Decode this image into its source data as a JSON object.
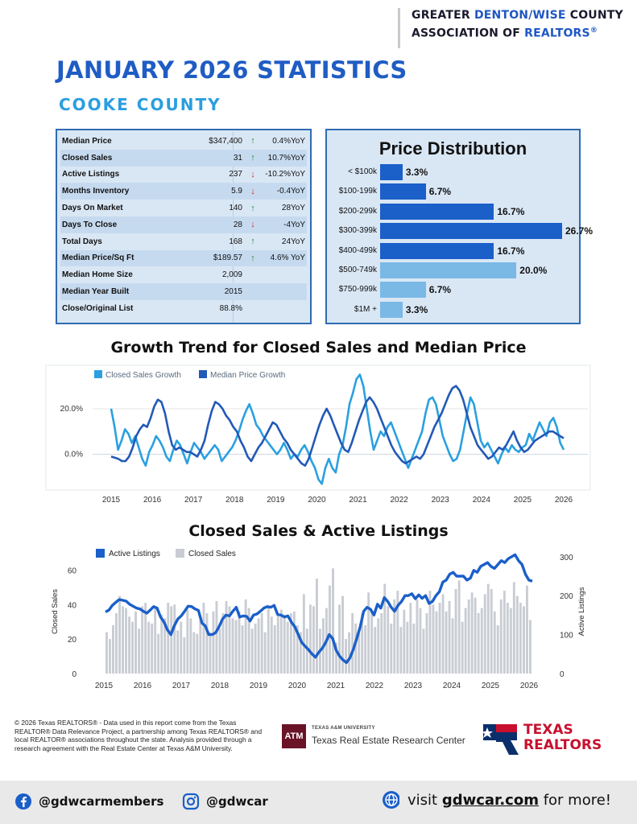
{
  "header": {
    "org_line1_a": "GREATER ",
    "org_line1_b": "DENTON/WISE",
    "org_line1_c": " COUNTY",
    "org_line2_a": "ASSOCIATION OF ",
    "org_line2_b": "REALTORS",
    "org_line2_reg": "®",
    "title": "JANUARY 2026 STATISTICS",
    "county": "COOKE COUNTY"
  },
  "stats": [
    {
      "label": "Median Price",
      "value": "$347,400",
      "arrow": "up",
      "yoy": "0.4%YoY"
    },
    {
      "label": "Closed Sales",
      "value": "31",
      "arrow": "up",
      "yoy": "10.7%YoY"
    },
    {
      "label": "Active Listings",
      "value": "237",
      "arrow": "down",
      "yoy": "-10.2%YoY"
    },
    {
      "label": "Months Inventory",
      "value": "5.9",
      "arrow": "down",
      "yoy": "-0.4YoY"
    },
    {
      "label": "Days On Market",
      "value": "140",
      "arrow": "up",
      "yoy": "28YoY"
    },
    {
      "label": "Days To Close",
      "value": "28",
      "arrow": "down",
      "yoy": "-4YoY"
    },
    {
      "label": "Total Days",
      "value": "168",
      "arrow": "up",
      "yoy": "24YoY"
    },
    {
      "label": "Median Price/Sq Ft",
      "value": "$189.57",
      "arrow": "up",
      "yoy": "4.6% YoY"
    },
    {
      "label": "Median Home Size",
      "value": "2,009",
      "arrow": "",
      "yoy": ""
    },
    {
      "label": "Median Year Built",
      "value": "2015",
      "arrow": "",
      "yoy": ""
    },
    {
      "label": "Close/Original List",
      "value": "88.8%",
      "arrow": "",
      "yoy": ""
    }
  ],
  "chart_data": [
    {
      "type": "bar",
      "title": "Price Distribution",
      "categories": [
        "< $100k",
        "$100-199k",
        "$200-299k",
        "$300-399k",
        "$400-499k",
        "$500-749k",
        "$750-999k",
        "$1M +"
      ],
      "values": [
        3.3,
        6.7,
        16.7,
        26.7,
        16.7,
        20.0,
        6.7,
        3.3
      ],
      "value_labels": [
        "3.3%",
        "6.7%",
        "16.7%",
        "26.7%",
        "16.7%",
        "20.0%",
        "6.7%",
        "3.3%"
      ],
      "colors": [
        "#1b5fc9",
        "#1b5fc9",
        "#1b5fc9",
        "#1b5fc9",
        "#1b5fc9",
        "#7ab8e6",
        "#7ab8e6",
        "#7ab8e6"
      ],
      "orientation": "horizontal"
    },
    {
      "type": "line",
      "title": "Growth Trend for Closed Sales and Median Price",
      "x_ticks": [
        "2015",
        "2016",
        "2017",
        "2018",
        "2019",
        "2020",
        "2021",
        "2022",
        "2023",
        "2024",
        "2025",
        "2026"
      ],
      "y_ticks": [
        "20.0%",
        "0.0%"
      ],
      "y_tick_values": [
        20,
        0
      ],
      "ylim": [
        -15,
        38
      ],
      "legend": "top-left",
      "series": [
        {
          "name": "Closed Sales Growth",
          "color": "#2aa0e0",
          "values": [
            20,
            12,
            2,
            6,
            11,
            9,
            5,
            8,
            3,
            -2,
            -5,
            1,
            4,
            8,
            6,
            3,
            -1,
            -3,
            2,
            6,
            4,
            0,
            -4,
            1,
            5,
            3,
            1,
            -2,
            0,
            2,
            4,
            2,
            -3,
            -1,
            1,
            3,
            6,
            10,
            15,
            19,
            22,
            18,
            13,
            11,
            8,
            6,
            4,
            2,
            0,
            2,
            5,
            2,
            -2,
            0,
            -1,
            2,
            4,
            1,
            -3,
            -6,
            -11,
            -13,
            -6,
            -2,
            -6,
            -8,
            0,
            4,
            12,
            22,
            27,
            33,
            35,
            30,
            20,
            10,
            2,
            6,
            10,
            8,
            12,
            14,
            10,
            6,
            2,
            -2,
            -6,
            -2,
            2,
            6,
            10,
            18,
            24,
            25,
            22,
            15,
            8,
            4,
            0,
            -3,
            -2,
            2,
            10,
            18,
            25,
            22,
            14,
            6,
            3,
            5,
            2,
            -1,
            -4,
            0,
            3,
            1,
            4,
            2,
            1,
            3,
            4,
            9,
            6,
            10,
            14,
            11,
            8,
            14,
            16,
            12,
            5,
            2
          ],
          "sample": "monthly from Jan 2015"
        },
        {
          "name": "Median Price Growth",
          "color": "#2359b7",
          "values": [
            -1,
            -1.5,
            -2,
            -3,
            -3,
            -1,
            3,
            8,
            11,
            13,
            12,
            16,
            21,
            24,
            23,
            18,
            10,
            4,
            2,
            3,
            2,
            1,
            1,
            0,
            -1,
            2,
            6,
            13,
            19,
            23,
            22,
            20,
            17,
            15,
            12,
            10,
            6,
            3,
            -1,
            -3,
            0,
            3,
            5,
            8,
            11,
            14,
            13,
            10,
            7,
            5,
            2,
            0,
            -2,
            -4,
            -5,
            -2,
            3,
            8,
            13,
            17,
            20,
            17,
            13,
            9,
            5,
            2,
            1,
            5,
            10,
            15,
            19,
            23,
            25,
            23,
            20,
            16,
            12,
            8,
            4,
            1,
            -1,
            -3,
            -4,
            -3,
            -2,
            -1,
            -2,
            0,
            4,
            8,
            12,
            15,
            18,
            22,
            26,
            29,
            30,
            28,
            24,
            18,
            12,
            8,
            4,
            2,
            0,
            -2,
            -1,
            1,
            3,
            2,
            4,
            7,
            10,
            6,
            3,
            1,
            2,
            4,
            6,
            7,
            8,
            9,
            10,
            10,
            9,
            8,
            7
          ]
        }
      ]
    },
    {
      "type": "bar",
      "title": "Closed Sales & Active Listings",
      "x_ticks": [
        "2015",
        "2016",
        "2017",
        "2018",
        "2019",
        "2020",
        "2021",
        "2022",
        "2023",
        "2024",
        "2025",
        "2026"
      ],
      "ylabel": "Closed Sales",
      "y2label": "Active Listings",
      "y_ticks": [
        "60",
        "40",
        "20",
        "0"
      ],
      "y_tick_values": [
        60,
        40,
        20,
        0
      ],
      "y2_ticks": [
        "300",
        "200",
        "100",
        "0"
      ],
      "y2_tick_values": [
        300,
        200,
        100,
        0
      ],
      "ylim": [
        0,
        70
      ],
      "y2lim": [
        0,
        310
      ],
      "legend": "top-left",
      "series": [
        {
          "name": "Closed Sales",
          "type": "bar",
          "color": "#c9cdd3",
          "axis": "left",
          "values": [
            24,
            20,
            28,
            35,
            45,
            39,
            38,
            33,
            30,
            36,
            26,
            39,
            41,
            30,
            29,
            38,
            23,
            34,
            32,
            41,
            39,
            40,
            25,
            30,
            21,
            37,
            32,
            24,
            23,
            31,
            41,
            35,
            24,
            36,
            42,
            26,
            35,
            42,
            39,
            32,
            31,
            36,
            28,
            43,
            38,
            26,
            29,
            32,
            35,
            24,
            38,
            33,
            28,
            35,
            37,
            34,
            30,
            35,
            36,
            28,
            24,
            46,
            26,
            40,
            39,
            55,
            26,
            32,
            38,
            51,
            61,
            18,
            40,
            45,
            20,
            24,
            35,
            29,
            24,
            35,
            28,
            47,
            36,
            27,
            32,
            35,
            52,
            39,
            29,
            43,
            48,
            27,
            37,
            30,
            41,
            29,
            43,
            38,
            26,
            35,
            48,
            40,
            36,
            41,
            46,
            36,
            42,
            32,
            49,
            54,
            30,
            38,
            43,
            47,
            44,
            35,
            38,
            46,
            52,
            49,
            36,
            28,
            43,
            48,
            41,
            38,
            53,
            45,
            41,
            39,
            51,
            31
          ],
          "sample": "monthly from Jan 2015"
        },
        {
          "name": "Active Listings",
          "type": "line",
          "color": "#1b5fc9",
          "axis": "right",
          "values": [
            158,
            163,
            175,
            183,
            190,
            188,
            186,
            178,
            173,
            168,
            166,
            160,
            155,
            163,
            172,
            168,
            145,
            132,
            112,
            100,
            123,
            140,
            148,
            160,
            173,
            172,
            166,
            162,
            130,
            122,
            100,
            100,
            105,
            120,
            140,
            150,
            148,
            160,
            170,
            145,
            148,
            147,
            135,
            150,
            153,
            160,
            168,
            172,
            170,
            175,
            152,
            150,
            145,
            148,
            132,
            120,
            100,
            80,
            70,
            61,
            50,
            42,
            55,
            65,
            80,
            100,
            90,
            60,
            45,
            35,
            28,
            40,
            62,
            90,
            120,
            160,
            170,
            165,
            150,
            178,
            168,
            195,
            185,
            170,
            160,
            175,
            185,
            200,
            200,
            205,
            192,
            202,
            193,
            200,
            180,
            185,
            200,
            210,
            235,
            240,
            255,
            260,
            250,
            250,
            250,
            240,
            245,
            265,
            260,
            275,
            280,
            285,
            275,
            270,
            280,
            290,
            285,
            295,
            300,
            305,
            290,
            280,
            255,
            240,
            237
          ]
        }
      ]
    }
  ],
  "footer": {
    "disclaimer": "© 2026 Texas REALTORS® - Data used in this report come from the Texas REALTOR® Data Relevance Project, a partnership among Texas REALTORS® and local REALTOR® associations throughout the state. Analysis provided through a research agreement with the Real Estate Center at Texas A&M University.",
    "tamu_small": "TEXAS A&M UNIVERSITY",
    "tamu_big": "Texas Real Estate Research Center",
    "tamu_logo_text": "ATM",
    "texas_realtors_line1": "TEXAS",
    "texas_realtors_line2": "REALTORS",
    "facebook_handle": "@gdwcarmembers",
    "instagram_handle": "@gdwcar",
    "visit_prefix": "visit ",
    "visit_site": "gdwcar.com",
    "visit_suffix": " for more!"
  },
  "icons": {
    "facebook": "facebook-icon",
    "instagram": "instagram-icon",
    "globe": "globe-icon"
  }
}
